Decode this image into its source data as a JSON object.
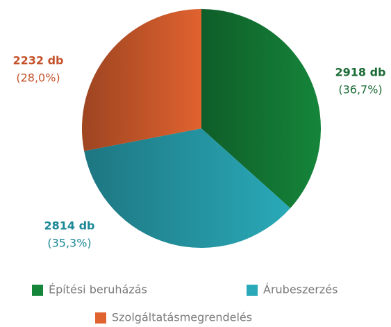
{
  "chart_data": {
    "type": "pie",
    "categories": [
      "Építési beruházás",
      "Árubeszerzés",
      "Szolgáltatásmegrendelés"
    ],
    "values": [
      2918,
      2814,
      2232
    ],
    "value_labels": [
      "2918 db",
      "2814 db",
      "2232 db"
    ],
    "shares": [
      36.7,
      35.3,
      28.0
    ],
    "share_labels": [
      "(36,7%)",
      "(35,3%)",
      "(28,0%)"
    ],
    "colors": [
      "#15853a",
      "#2aa9b8",
      "#e0622f"
    ],
    "label_colors": [
      "#1c6b36",
      "#1b8796",
      "#c4532b"
    ]
  }
}
